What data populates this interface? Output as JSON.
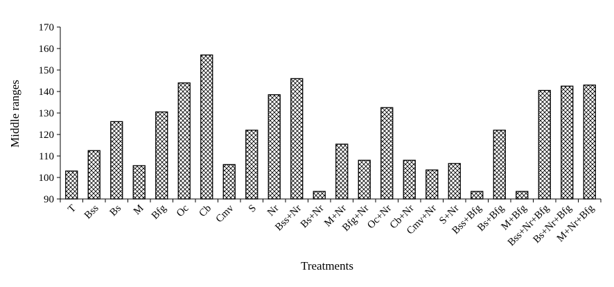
{
  "chart_data": {
    "type": "bar",
    "xlabel": "Treatments",
    "ylabel": "Middle ranges",
    "ylim": [
      90,
      170
    ],
    "yticks": [
      90,
      100,
      110,
      120,
      130,
      140,
      150,
      160,
      170
    ],
    "grid": false,
    "bar_fill": "crosshatch",
    "colors": {
      "bar_stroke": "#000000",
      "hatch": "#000000",
      "background": "#ffffff"
    },
    "categories": [
      "T",
      "Bss",
      "Bs",
      "M",
      "Bfg",
      "Oc",
      "Cb",
      "Cmv",
      "S",
      "Nr",
      "Bss+Nr",
      "Bs+Nr",
      "M+Nr",
      "Bfg+Nr",
      "Oc+Nr",
      "Cb+Nr",
      "Cmv+Nr",
      "S+Nr",
      "Bss+Bfg",
      "Bs+Bfg",
      "M+Bfg",
      "Bss+Nr+Bfg",
      "Bs+Nr+Bfg",
      "M+Nr+Bfg"
    ],
    "values": [
      103,
      112.5,
      126,
      105.5,
      130.5,
      144,
      157,
      106,
      122,
      138.5,
      146,
      93.5,
      115.5,
      108,
      132.5,
      108,
      103.5,
      106.5,
      93.5,
      122,
      93.5,
      140.5,
      142.5,
      143
    ]
  }
}
